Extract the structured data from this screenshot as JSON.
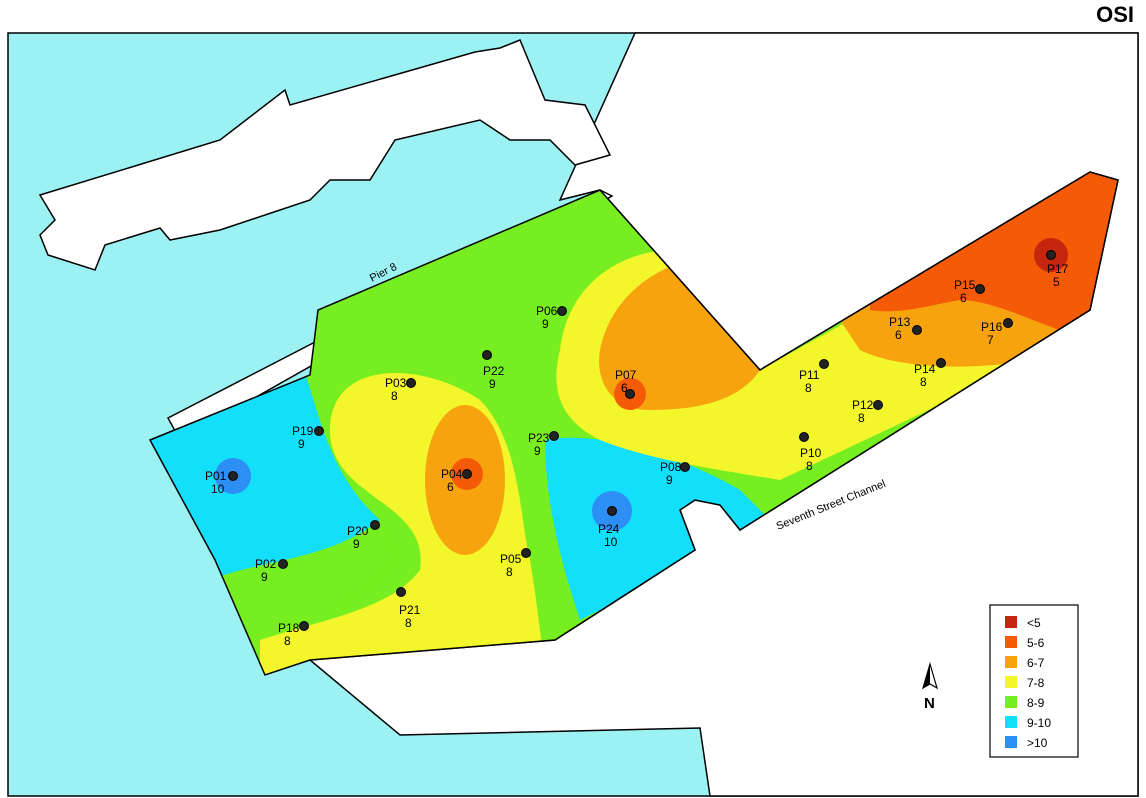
{
  "brand": "OSI",
  "water_labels": {
    "pier": "Pier 8",
    "channel": "Seventh Street Channel"
  },
  "north_label": "N",
  "colors": {
    "water": "#9cf2f3",
    "land": "#ffffff",
    "lt5": "#c5260d",
    "c5_6": "#f55a06",
    "c6_7": "#f6a30e",
    "c7_8": "#f2f62a",
    "c8_9": "#77ee1f",
    "c9_10": "#14dffa",
    "gt10": "#2d8ef5"
  },
  "legend": [
    {
      "label": "<5",
      "color": "#c5260d"
    },
    {
      "label": "5-6",
      "color": "#f55a06"
    },
    {
      "label": "6-7",
      "color": "#f6a30e"
    },
    {
      "label": "7-8",
      "color": "#f2f62a"
    },
    {
      "label": "8-9",
      "color": "#77ee1f"
    },
    {
      "label": "9-10",
      "color": "#14dffa"
    },
    {
      "label": ">10",
      "color": "#2d8ef5"
    }
  ],
  "points": [
    {
      "id": "P01",
      "value": "10"
    },
    {
      "id": "P02",
      "value": "9"
    },
    {
      "id": "P03",
      "value": "8"
    },
    {
      "id": "P04",
      "value": "6"
    },
    {
      "id": "P05",
      "value": "8"
    },
    {
      "id": "P06",
      "value": "9"
    },
    {
      "id": "P07",
      "value": "6"
    },
    {
      "id": "P08",
      "value": "9"
    },
    {
      "id": "P10",
      "value": "8"
    },
    {
      "id": "P11",
      "value": "8"
    },
    {
      "id": "P12",
      "value": "8"
    },
    {
      "id": "P13",
      "value": "6"
    },
    {
      "id": "P14",
      "value": "8"
    },
    {
      "id": "P15",
      "value": "6"
    },
    {
      "id": "P16",
      "value": "7"
    },
    {
      "id": "P17",
      "value": "5"
    },
    {
      "id": "P18",
      "value": "8"
    },
    {
      "id": "P19",
      "value": "9"
    },
    {
      "id": "P20",
      "value": "9"
    },
    {
      "id": "P21",
      "value": "8"
    },
    {
      "id": "P22",
      "value": "9"
    },
    {
      "id": "P23",
      "value": "9"
    },
    {
      "id": "P24",
      "value": "10"
    }
  ]
}
